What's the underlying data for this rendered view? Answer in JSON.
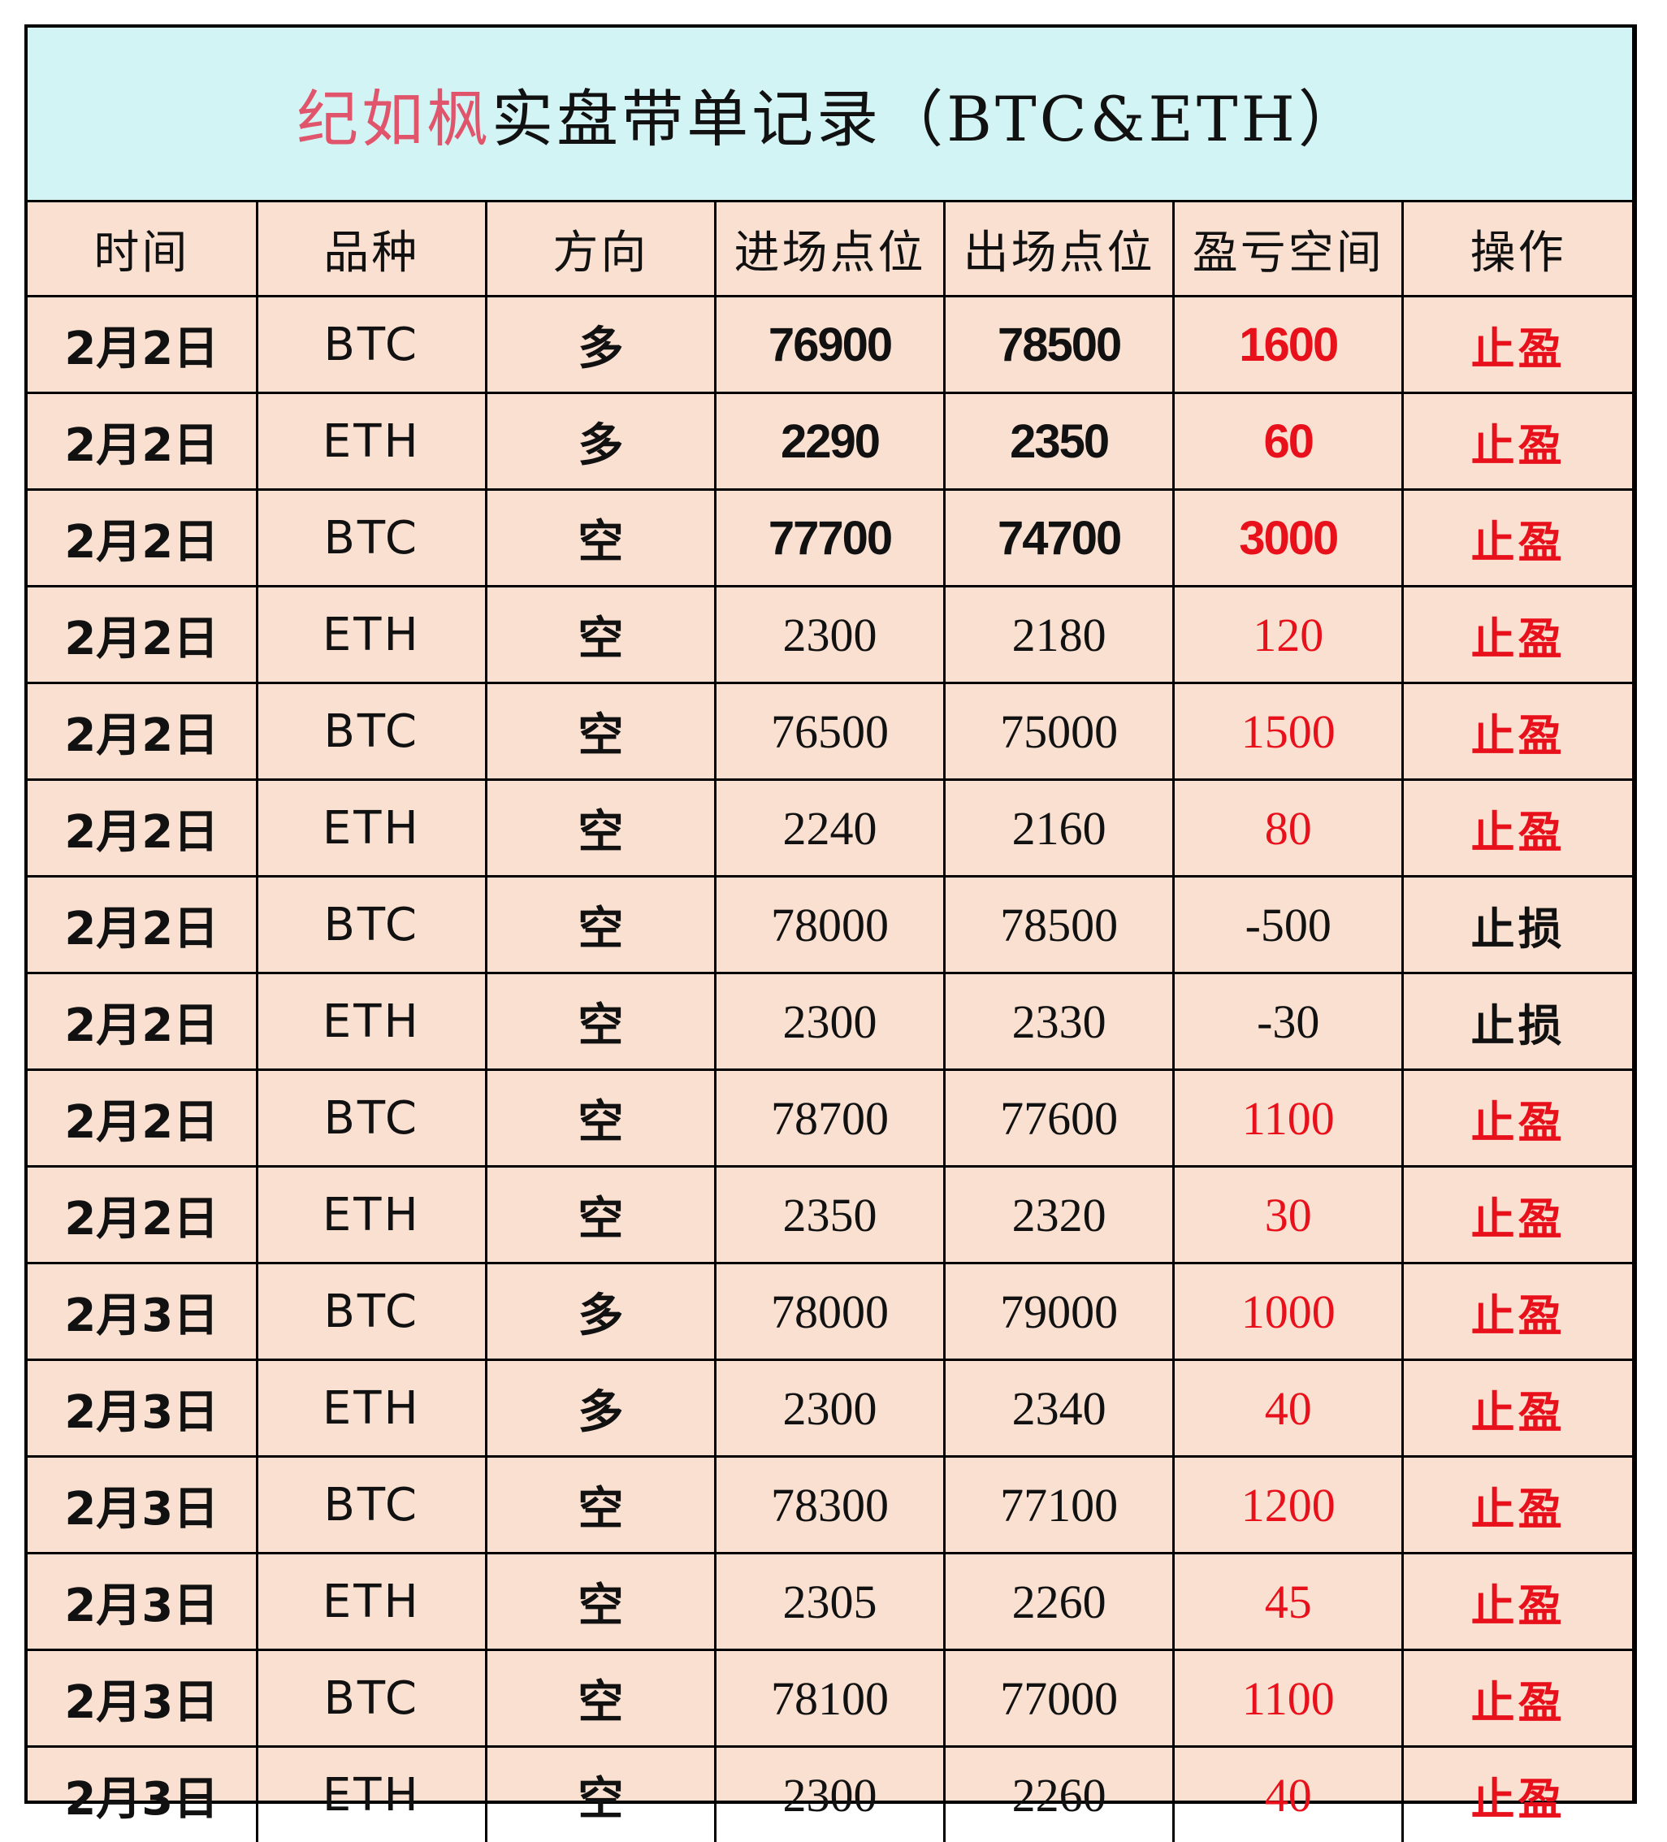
{
  "title": {
    "accent": "纪如枫",
    "main": "实盘带单记录（BTC&ETH）"
  },
  "colors": {
    "title_bg": "#d3f4f4",
    "table_bg": "#f9e0d1",
    "title_accent": "#e0556b",
    "profit_text": "#e8111b",
    "loss_text": "#111111"
  },
  "columns": [
    "时间",
    "品种",
    "方向",
    "进场点位",
    "出场点位",
    "盈亏空间",
    "操作"
  ],
  "rows": [
    {
      "date": "2月2日",
      "symbol": "BTC",
      "direction": "多",
      "entry": "76900",
      "exit": "78500",
      "pnl": "1600",
      "op": "止盈",
      "result": "profit"
    },
    {
      "date": "2月2日",
      "symbol": "ETH",
      "direction": "多",
      "entry": "2290",
      "exit": "2350",
      "pnl": "60",
      "op": "止盈",
      "result": "profit"
    },
    {
      "date": "2月2日",
      "symbol": "BTC",
      "direction": "空",
      "entry": "77700",
      "exit": "74700",
      "pnl": "3000",
      "op": "止盈",
      "result": "profit"
    },
    {
      "date": "2月2日",
      "symbol": "ETH",
      "direction": "空",
      "entry": "2300",
      "exit": "2180",
      "pnl": "120",
      "op": "止盈",
      "result": "profit"
    },
    {
      "date": "2月2日",
      "symbol": "BTC",
      "direction": "空",
      "entry": "76500",
      "exit": "75000",
      "pnl": "1500",
      "op": "止盈",
      "result": "profit"
    },
    {
      "date": "2月2日",
      "symbol": "ETH",
      "direction": "空",
      "entry": "2240",
      "exit": "2160",
      "pnl": "80",
      "op": "止盈",
      "result": "profit"
    },
    {
      "date": "2月2日",
      "symbol": "BTC",
      "direction": "空",
      "entry": "78000",
      "exit": "78500",
      "pnl": "-500",
      "op": "止损",
      "result": "loss"
    },
    {
      "date": "2月2日",
      "symbol": "ETH",
      "direction": "空",
      "entry": "2300",
      "exit": "2330",
      "pnl": "-30",
      "op": "止损",
      "result": "loss"
    },
    {
      "date": "2月2日",
      "symbol": "BTC",
      "direction": "空",
      "entry": "78700",
      "exit": "77600",
      "pnl": "1100",
      "op": "止盈",
      "result": "profit"
    },
    {
      "date": "2月2日",
      "symbol": "ETH",
      "direction": "空",
      "entry": "2350",
      "exit": "2320",
      "pnl": "30",
      "op": "止盈",
      "result": "profit"
    },
    {
      "date": "2月3日",
      "symbol": "BTC",
      "direction": "多",
      "entry": "78000",
      "exit": "79000",
      "pnl": "1000",
      "op": "止盈",
      "result": "profit"
    },
    {
      "date": "2月3日",
      "symbol": "ETH",
      "direction": "多",
      "entry": "2300",
      "exit": "2340",
      "pnl": "40",
      "op": "止盈",
      "result": "profit"
    },
    {
      "date": "2月3日",
      "symbol": "BTC",
      "direction": "空",
      "entry": "78300",
      "exit": "77100",
      "pnl": "1200",
      "op": "止盈",
      "result": "profit"
    },
    {
      "date": "2月3日",
      "symbol": "ETH",
      "direction": "空",
      "entry": "2305",
      "exit": "2260",
      "pnl": "45",
      "op": "止盈",
      "result": "profit"
    },
    {
      "date": "2月3日",
      "symbol": "BTC",
      "direction": "空",
      "entry": "78100",
      "exit": "77000",
      "pnl": "1100",
      "op": "止盈",
      "result": "profit"
    },
    {
      "date": "2月3日",
      "symbol": "ETH",
      "direction": "空",
      "entry": "2300",
      "exit": "2260",
      "pnl": "40",
      "op": "止盈",
      "result": "profit"
    }
  ]
}
